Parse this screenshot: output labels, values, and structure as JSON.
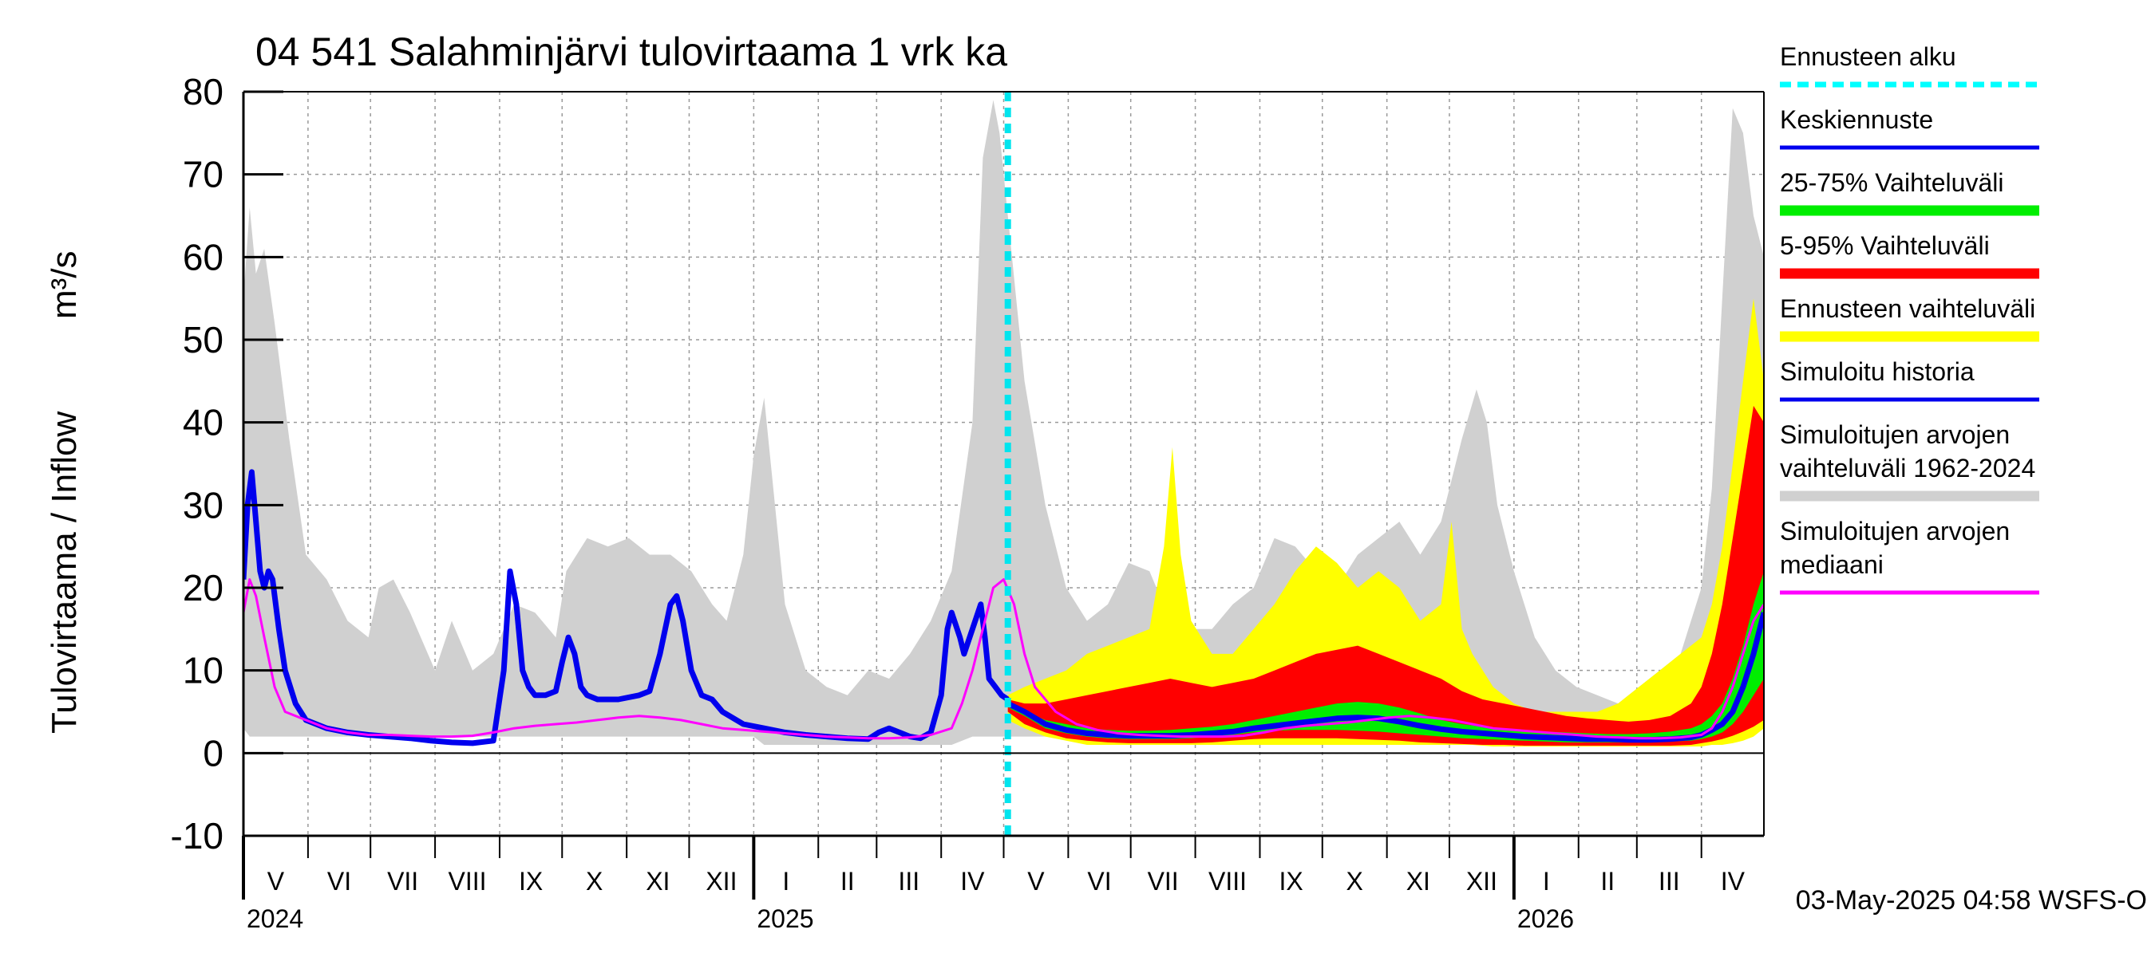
{
  "chart_data": {
    "type": "line",
    "title": "04 541 Salahminjärvi tulovirtaama 1 vrk ka",
    "ylabel": "Tulovirtaama / Inflow",
    "yunit": "m³/s",
    "ylim": [
      -10,
      80
    ],
    "yticks": [
      -10,
      0,
      10,
      20,
      30,
      40,
      50,
      60,
      70,
      80
    ],
    "x_range_days": [
      0,
      730
    ],
    "forecast_start_day": 367,
    "months": [
      {
        "label": "V",
        "start": 0
      },
      {
        "label": "VI",
        "start": 31
      },
      {
        "label": "VII",
        "start": 61
      },
      {
        "label": "VIII",
        "start": 92
      },
      {
        "label": "IX",
        "start": 123
      },
      {
        "label": "X",
        "start": 153
      },
      {
        "label": "XI",
        "start": 184
      },
      {
        "label": "XII",
        "start": 214
      },
      {
        "label": "I",
        "start": 245
      },
      {
        "label": "II",
        "start": 276
      },
      {
        "label": "III",
        "start": 304
      },
      {
        "label": "IV",
        "start": 335
      },
      {
        "label": "V",
        "start": 365
      },
      {
        "label": "VI",
        "start": 396
      },
      {
        "label": "VII",
        "start": 426
      },
      {
        "label": "VIII",
        "start": 457
      },
      {
        "label": "IX",
        "start": 488
      },
      {
        "label": "X",
        "start": 518
      },
      {
        "label": "XI",
        "start": 549
      },
      {
        "label": "XII",
        "start": 579
      },
      {
        "label": "I",
        "start": 610
      },
      {
        "label": "II",
        "start": 641
      },
      {
        "label": "III",
        "start": 669
      },
      {
        "label": "IV",
        "start": 700
      }
    ],
    "years": [
      {
        "label": "2024",
        "day": 0
      },
      {
        "label": "2025",
        "day": 245
      },
      {
        "label": "2026",
        "day": 610
      }
    ],
    "series": [
      {
        "name": "Simuloitujen arvojen vaihteluväli 1962-2024",
        "kind": "band",
        "color": "#d0d0d0",
        "x": [
          0,
          3,
          6,
          10,
          15,
          22,
          30,
          40,
          50,
          60,
          65,
          72,
          80,
          92,
          100,
          110,
          120,
          130,
          140,
          150,
          155,
          165,
          175,
          185,
          195,
          205,
          215,
          225,
          232,
          240,
          245,
          250,
          260,
          270,
          280,
          290,
          300,
          310,
          320,
          330,
          340,
          350,
          355,
          360,
          363,
          367,
          375,
          385,
          395,
          405,
          415,
          425,
          435,
          445,
          455,
          465,
          475,
          485,
          495,
          505,
          515,
          525,
          535,
          545,
          555,
          565,
          575,
          585,
          592,
          597,
          602,
          610,
          620,
          630,
          640,
          650,
          660,
          670,
          680,
          690,
          700,
          705,
          710,
          715,
          720,
          725,
          730
        ],
        "upper": [
          55,
          66,
          58,
          61,
          52,
          38,
          24,
          21,
          16,
          14,
          20,
          21,
          17,
          10,
          16,
          10,
          12,
          18,
          17,
          14,
          22,
          26,
          25,
          26,
          24,
          24,
          22,
          18,
          16,
          24,
          36,
          43,
          18,
          10,
          8,
          7,
          10,
          9,
          12,
          16,
          22,
          40,
          72,
          79,
          75,
          65,
          45,
          30,
          20,
          16,
          18,
          23,
          22,
          16,
          15,
          15,
          18,
          20,
          26,
          25,
          22,
          20,
          24,
          26,
          28,
          24,
          28,
          38,
          44,
          40,
          30,
          22,
          14,
          10,
          8,
          7,
          6,
          8,
          10,
          12,
          20,
          32,
          55,
          78,
          75,
          65,
          60
        ],
        "lower": [
          3,
          2,
          2,
          2,
          2,
          2,
          2,
          2,
          2,
          2,
          2,
          2,
          2,
          2,
          2,
          2,
          2,
          2,
          2,
          2,
          2,
          2,
          2,
          2,
          2,
          2,
          2,
          2,
          2,
          2,
          2,
          1,
          1,
          1,
          1,
          1,
          1,
          1,
          1,
          1,
          1,
          2,
          2,
          2,
          2,
          2,
          2,
          2,
          2,
          2,
          2,
          2,
          2,
          2,
          2,
          2,
          2,
          2,
          2,
          2,
          2,
          2,
          2,
          2,
          2,
          2,
          2,
          2,
          2,
          2,
          2,
          1,
          1,
          1,
          1,
          1,
          1,
          1,
          1,
          1,
          1,
          2,
          2,
          3,
          3,
          3,
          3
        ]
      },
      {
        "name": "Ennusteen vaihteluväli",
        "kind": "band",
        "color": "#ffff00",
        "x": [
          367,
          375,
          385,
          395,
          405,
          415,
          425,
          435,
          442,
          446,
          450,
          455,
          465,
          475,
          485,
          495,
          505,
          515,
          525,
          535,
          545,
          555,
          565,
          575,
          580,
          585,
          590,
          600,
          610,
          620,
          630,
          640,
          650,
          660,
          670,
          680,
          690,
          700,
          705,
          710,
          715,
          720,
          725,
          730
        ],
        "upper": [
          7,
          8,
          9,
          10,
          12,
          13,
          14,
          15,
          25,
          37,
          24,
          16,
          12,
          12,
          15,
          18,
          22,
          25,
          23,
          20,
          22,
          20,
          16,
          18,
          28,
          15,
          12,
          8,
          6,
          5,
          5,
          5,
          5,
          6,
          8,
          10,
          12,
          14,
          18,
          25,
          35,
          45,
          55,
          45
        ],
        "lower": [
          4,
          3,
          2,
          1.5,
          1,
          1,
          1,
          1,
          1,
          1,
          1,
          1,
          1,
          1,
          1,
          1,
          1,
          1,
          1,
          1,
          1,
          1,
          1,
          1,
          1,
          1,
          1,
          0.8,
          0.8,
          0.8,
          0.8,
          0.8,
          0.8,
          0.8,
          0.8,
          0.8,
          0.8,
          0.8,
          1,
          1,
          1.2,
          1.5,
          2,
          3
        ]
      },
      {
        "name": "5-95% Vaihteluväli",
        "kind": "band",
        "color": "#ff0000",
        "x": [
          367,
          375,
          385,
          395,
          405,
          415,
          425,
          435,
          445,
          455,
          465,
          475,
          485,
          495,
          505,
          515,
          525,
          535,
          545,
          555,
          565,
          575,
          585,
          595,
          605,
          615,
          625,
          635,
          645,
          655,
          665,
          675,
          685,
          695,
          700,
          705,
          710,
          715,
          720,
          725,
          730
        ],
        "upper": [
          6.5,
          6,
          6,
          6.5,
          7,
          7.5,
          8,
          8.5,
          9,
          8.5,
          8,
          8.5,
          9,
          10,
          11,
          12,
          12.5,
          13,
          12,
          11,
          10,
          9,
          7.5,
          6.5,
          6,
          5.5,
          5,
          4.5,
          4.2,
          4,
          3.8,
          4,
          4.5,
          6,
          8,
          12,
          18,
          26,
          34,
          42,
          40
        ],
        "lower": [
          5,
          3.5,
          2.5,
          1.8,
          1.5,
          1.3,
          1.2,
          1.2,
          1.2,
          1.2,
          1.3,
          1.5,
          1.7,
          1.8,
          1.8,
          1.8,
          1.8,
          1.7,
          1.6,
          1.5,
          1.3,
          1.2,
          1.1,
          1,
          1,
          0.9,
          0.9,
          0.9,
          0.9,
          0.9,
          0.9,
          0.9,
          0.9,
          1,
          1.2,
          1.4,
          1.7,
          2.1,
          2.6,
          3.2,
          4
        ]
      },
      {
        "name": "25-75% Vaihteluväli",
        "kind": "band",
        "color": "#00ee00",
        "x": [
          367,
          375,
          385,
          395,
          405,
          415,
          425,
          435,
          445,
          455,
          465,
          475,
          485,
          495,
          505,
          515,
          525,
          535,
          545,
          555,
          565,
          575,
          585,
          595,
          605,
          615,
          625,
          635,
          645,
          655,
          665,
          675,
          685,
          695,
          700,
          705,
          710,
          715,
          720,
          725,
          730
        ],
        "upper": [
          5.5,
          5,
          4,
          3.5,
          3,
          2.8,
          2.7,
          2.7,
          2.8,
          3,
          3.2,
          3.5,
          4,
          4.5,
          5,
          5.5,
          6,
          6.2,
          6,
          5.5,
          4.8,
          4,
          3.5,
          3.2,
          3,
          2.8,
          2.6,
          2.5,
          2.4,
          2.3,
          2.3,
          2.4,
          2.6,
          3,
          3.5,
          4.5,
          6,
          9,
          13,
          18,
          22
        ],
        "lower": [
          5.5,
          4.5,
          3,
          2.4,
          2,
          1.8,
          1.7,
          1.7,
          1.7,
          1.8,
          2,
          2.2,
          2.5,
          2.7,
          2.8,
          2.8,
          2.8,
          2.7,
          2.6,
          2.4,
          2.2,
          2,
          1.8,
          1.7,
          1.6,
          1.5,
          1.4,
          1.3,
          1.3,
          1.3,
          1.3,
          1.3,
          1.4,
          1.5,
          1.7,
          2,
          2.5,
          3.5,
          5,
          7,
          9
        ]
      },
      {
        "name": "Keskiennuste",
        "kind": "line",
        "color": "#0000ee",
        "x": [
          367,
          375,
          385,
          395,
          405,
          415,
          425,
          435,
          445,
          455,
          465,
          475,
          485,
          495,
          505,
          515,
          525,
          535,
          545,
          555,
          565,
          575,
          585,
          595,
          605,
          615,
          625,
          635,
          645,
          655,
          665,
          675,
          685,
          695,
          700,
          705,
          710,
          715,
          720,
          725,
          730
        ],
        "values": [
          6,
          5,
          3.5,
          2.8,
          2.4,
          2.2,
          2.1,
          2.1,
          2.1,
          2.2,
          2.4,
          2.6,
          3,
          3.3,
          3.6,
          3.9,
          4.2,
          4.3,
          4.2,
          3.8,
          3.3,
          2.9,
          2.6,
          2.4,
          2.2,
          2,
          1.9,
          1.8,
          1.7,
          1.7,
          1.6,
          1.6,
          1.7,
          1.9,
          2.2,
          2.8,
          3.5,
          5,
          8,
          12,
          17
        ]
      },
      {
        "name": "Simuloitu historia",
        "kind": "line",
        "color": "#0000ee",
        "x": [
          0,
          2,
          4,
          6,
          8,
          10,
          12,
          14,
          17,
          20,
          25,
          30,
          40,
          50,
          60,
          70,
          80,
          90,
          100,
          110,
          120,
          125,
          128,
          131,
          134,
          137,
          140,
          145,
          150,
          153,
          156,
          159,
          162,
          165,
          170,
          180,
          190,
          195,
          200,
          205,
          208,
          211,
          215,
          220,
          225,
          230,
          240,
          250,
          260,
          270,
          280,
          290,
          300,
          305,
          310,
          315,
          320,
          325,
          330,
          335,
          338,
          340,
          344,
          346,
          350,
          354,
          356,
          358,
          361,
          364,
          367
        ],
        "values": [
          21,
          30,
          34,
          28,
          22,
          20,
          22,
          21,
          15,
          10,
          6,
          4,
          3,
          2.5,
          2.2,
          2,
          1.8,
          1.5,
          1.3,
          1.2,
          1.5,
          10,
          22,
          18,
          10,
          8,
          7,
          7,
          7.5,
          11,
          14,
          12,
          8,
          7,
          6.5,
          6.5,
          7,
          7.5,
          12,
          18,
          19,
          16,
          10,
          7,
          6.5,
          5,
          3.5,
          3,
          2.5,
          2.2,
          2,
          1.8,
          1.7,
          2.5,
          3,
          2.5,
          2,
          1.8,
          2.5,
          7,
          15,
          17,
          14,
          12,
          15,
          18,
          14,
          9,
          8,
          7,
          6.5
        ]
      },
      {
        "name": "Simuloitujen arvojen mediaani",
        "kind": "line",
        "color": "#ff00ff",
        "x": [
          0,
          3,
          6,
          10,
          15,
          20,
          30,
          40,
          50,
          60,
          70,
          80,
          90,
          100,
          110,
          120,
          130,
          140,
          150,
          160,
          170,
          180,
          190,
          200,
          210,
          220,
          230,
          240,
          250,
          260,
          270,
          280,
          290,
          300,
          310,
          320,
          330,
          340,
          345,
          350,
          355,
          360,
          365,
          370,
          375,
          380,
          390,
          400,
          410,
          420,
          430,
          440,
          450,
          460,
          470,
          480,
          490,
          500,
          510,
          520,
          530,
          540,
          550,
          560,
          570,
          580,
          590,
          600,
          610,
          620,
          630,
          640,
          650,
          660,
          670,
          680,
          690,
          700,
          705,
          710,
          715,
          720,
          725,
          730
        ],
        "values": [
          17,
          21,
          19,
          14,
          8,
          5,
          4,
          3,
          2.5,
          2.2,
          2.2,
          2.1,
          2,
          2,
          2.1,
          2.5,
          3,
          3.3,
          3.5,
          3.7,
          4,
          4.3,
          4.5,
          4.3,
          4,
          3.5,
          3,
          2.8,
          2.6,
          2.4,
          2.2,
          2,
          1.9,
          1.8,
          1.8,
          1.9,
          2.2,
          3,
          6,
          10,
          15,
          20,
          21,
          18,
          12,
          8,
          5,
          3.5,
          2.8,
          2.4,
          2.2,
          2.1,
          2,
          2,
          2,
          2.1,
          2.5,
          3,
          3.3,
          3.5,
          3.7,
          4,
          4.3,
          4.5,
          4.3,
          4,
          3.5,
          3,
          2.8,
          2.6,
          2.4,
          2.2,
          2,
          1.9,
          1.8,
          1.8,
          1.9,
          2.2,
          3,
          5,
          8,
          12,
          16,
          18
        ]
      }
    ],
    "legend": [
      {
        "label": "Ennusteen alku",
        "color": "#00ffff",
        "style": "dashed"
      },
      {
        "label": "Keskiennuste",
        "color": "#0000ee",
        "style": "line"
      },
      {
        "label": "25-75% Vaihteluväli",
        "color": "#00ee00",
        "style": "thick"
      },
      {
        "label": "5-95% Vaihteluväli",
        "color": "#ff0000",
        "style": "thick"
      },
      {
        "label": "Ennusteen vaihteluväli",
        "color": "#ffff00",
        "style": "thick"
      },
      {
        "label": "Simuloitu historia",
        "color": "#0000ee",
        "style": "line"
      },
      {
        "label": "Simuloitujen arvojen\nvaihteluväli 1962-2024",
        "color": "#d0d0d0",
        "style": "thick"
      },
      {
        "label": "Simuloitujen arvojen\nmediaani",
        "color": "#ff00ff",
        "style": "line"
      }
    ],
    "footer": "03-May-2025 04:58 WSFS-O"
  }
}
